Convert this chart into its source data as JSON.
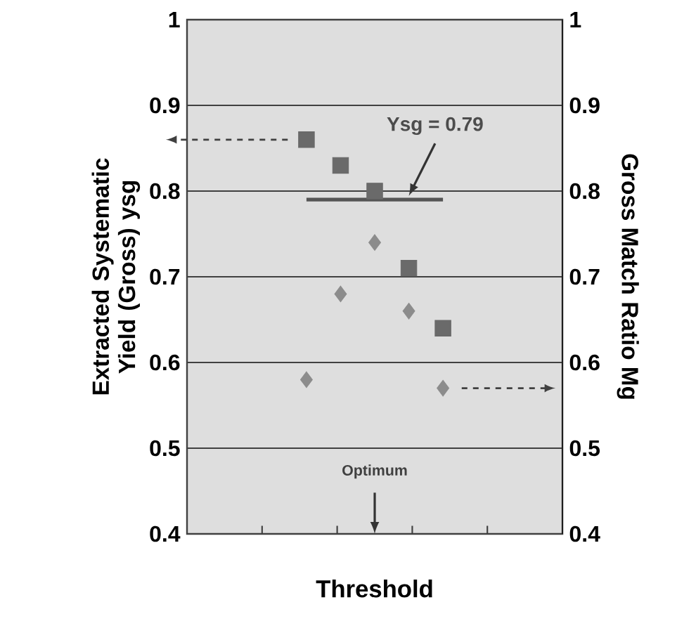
{
  "chart_data": {
    "type": "scatter",
    "xlabel": "Threshold",
    "ylabel": "Extracted Systematic Yield (Gross) ysg",
    "y2label": "Gross Match Ratio Mg",
    "categories": [
      null,
      null,
      null,
      null,
      null,
      null,
      null,
      null,
      null,
      null,
      null
    ],
    "ylim": [
      0.4,
      1
    ],
    "yticks": [
      0.4,
      0.5,
      0.6,
      0.7,
      0.8,
      0.9,
      1
    ],
    "y2lim": [
      0.4,
      1
    ],
    "y2ticks": [
      0.4,
      0.5,
      0.6,
      0.7,
      0.8,
      0.9,
      1
    ],
    "tick_labels": "y",
    "grid": "y",
    "series": [
      {
        "marker": "square",
        "color": "#6a6a6a",
        "values": [
          null,
          null,
          null,
          0.86,
          0.83,
          0.8,
          0.71,
          0.64,
          null,
          null,
          null
        ]
      },
      {
        "marker": "diamond",
        "color": "#8c8c8c",
        "axis": "y2",
        "values": [
          null,
          null,
          null,
          0.58,
          0.68,
          0.74,
          0.66,
          0.57,
          null,
          null,
          null
        ]
      },
      {
        "type": "line",
        "marker": "none",
        "color": "#555555",
        "values": [
          null,
          null,
          null,
          0.79,
          0.79,
          0.79,
          0.79,
          0.79,
          null,
          null,
          null
        ]
      }
    ],
    "annotations": [
      "Ysg = 0.79",
      "Optimum"
    ]
  }
}
